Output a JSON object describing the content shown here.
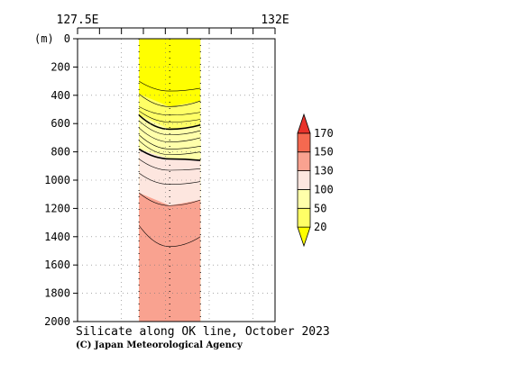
{
  "chart_data": {
    "type": "contour-section",
    "title": "Silicate along OK line, October 2023",
    "credit": "(C) Japan Meteorological Agency",
    "y_unit": "(m)",
    "x_axis": {
      "min": 127.5,
      "max": 132,
      "ticks": [
        127.5,
        128,
        128.5,
        129,
        129.5,
        130,
        130.5,
        131,
        131.5,
        132
      ],
      "labels": [
        {
          "value": 127.5,
          "text": "127.5E"
        },
        {
          "value": 132,
          "text": "132E"
        }
      ]
    },
    "y_axis": {
      "min": 0,
      "max": 2000,
      "inverted": true,
      "ticks": [
        0,
        200,
        400,
        600,
        800,
        1000,
        1200,
        1400,
        1600,
        1800,
        2000
      ],
      "labels": [
        "0",
        "200",
        "400",
        "600",
        "800",
        "1000",
        "1200",
        "1400",
        "1600",
        "1800",
        "2000"
      ]
    },
    "grid": true,
    "stations_x": [
      128.9,
      129.6,
      130.3
    ],
    "data_extent": {
      "x_min": 128.9,
      "x_max": 130.3,
      "y_max": 2000
    },
    "levels": [
      {
        "lower": 0,
        "upper": 20,
        "color": "#ffff00"
      },
      {
        "lower": 20,
        "upper": 50,
        "color": "#ffff66"
      },
      {
        "lower": 50,
        "upper": 100,
        "color": "#ffffaa"
      },
      {
        "lower": 100,
        "upper": 130,
        "color": "#fde6df"
      },
      {
        "lower": 130,
        "upper": 150,
        "color": "#f9a290"
      },
      {
        "lower": 150,
        "upper": 170,
        "color": "#f56950"
      },
      {
        "lower": 170,
        "upper": 999,
        "color": "#e8322a"
      }
    ],
    "contours": [
      {
        "value": 10,
        "bold": false,
        "depths": [
          300,
          370,
          350
        ]
      },
      {
        "value": 20,
        "bold": false,
        "depths": [
          390,
          480,
          440
        ]
      },
      {
        "value": 30,
        "bold": false,
        "depths": [
          480,
          540,
          520
        ]
      },
      {
        "value": 40,
        "bold": false,
        "depths": [
          510,
          590,
          570
        ]
      },
      {
        "value": 50,
        "bold": true,
        "depths": [
          540,
          640,
          610
        ]
      },
      {
        "value": 60,
        "bold": false,
        "depths": [
          580,
          680,
          650
        ]
      },
      {
        "value": 70,
        "bold": false,
        "depths": [
          630,
          730,
          700
        ]
      },
      {
        "value": 80,
        "bold": false,
        "depths": [
          680,
          780,
          760
        ]
      },
      {
        "value": 90,
        "bold": false,
        "depths": [
          720,
          820,
          800
        ]
      },
      {
        "value": 100,
        "bold": true,
        "depths": [
          780,
          850,
          860
        ]
      },
      {
        "value": 110,
        "bold": false,
        "depths": [
          850,
          930,
          920
        ]
      },
      {
        "value": 120,
        "bold": false,
        "depths": [
          950,
          1030,
          1010
        ]
      },
      {
        "value": 130,
        "bold": false,
        "depths": [
          1090,
          1180,
          1140
        ]
      },
      {
        "value": 140,
        "bold": false,
        "depths": [
          1320,
          1470,
          1400
        ]
      }
    ],
    "colorbar": {
      "labels": [
        "20",
        "50",
        "100",
        "130",
        "150",
        "170"
      ],
      "colors": [
        "#ffff00",
        "#ffff66",
        "#ffffaa",
        "#fde6df",
        "#f9a290",
        "#f56950",
        "#e8322a"
      ]
    }
  }
}
